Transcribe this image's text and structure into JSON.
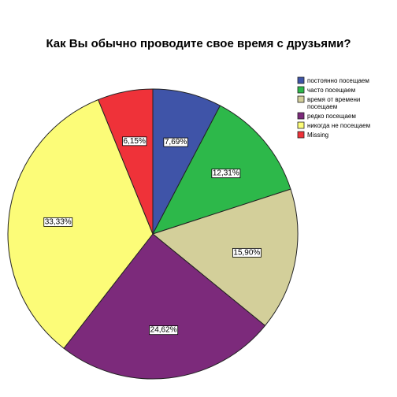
{
  "chart_data": {
    "type": "pie",
    "title": "Как Вы обычно проводите свое время с друзьями?",
    "slices": [
      {
        "name": "постоянно посещаем",
        "value": 7.69,
        "label": "7,69%",
        "color": "#3f54a8"
      },
      {
        "name": "часто посещаем",
        "value": 12.31,
        "label": "12,31%",
        "color": "#2db84a"
      },
      {
        "name": "время от времени посещаем",
        "legend_lines": [
          "время от времени",
          "посещаем"
        ],
        "value": 15.9,
        "label": "15,90%",
        "color": "#d3cf9a"
      },
      {
        "name": "редко посещаем",
        "value": 24.62,
        "label": "24,62%",
        "color": "#7c2a7b"
      },
      {
        "name": "никогда не посещаем",
        "value": 33.33,
        "label": "33,33%",
        "color": "#fcfc78"
      },
      {
        "name": "Missing",
        "value": 6.15,
        "label": "6,15%",
        "color": "#ef3239"
      }
    ],
    "start_angle_deg": 0,
    "direction": "clockwise",
    "legend_placement": "right"
  }
}
